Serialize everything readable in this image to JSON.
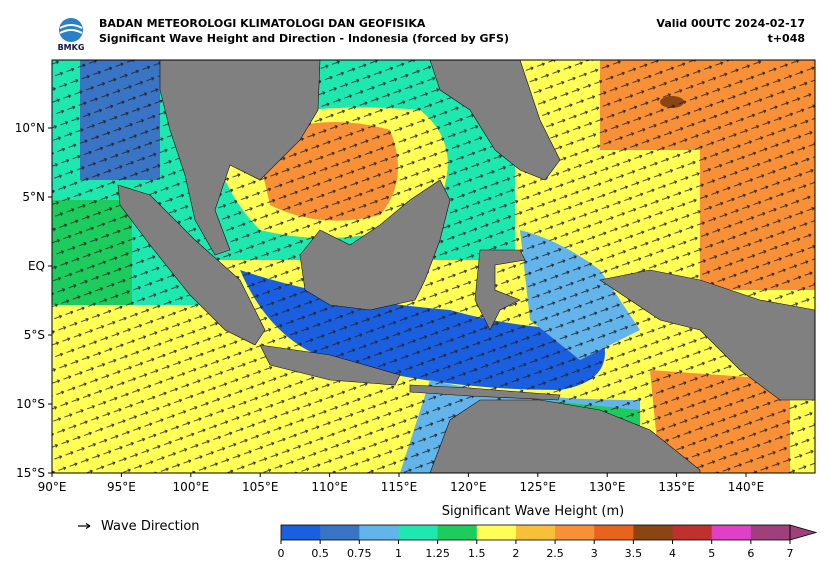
{
  "header": {
    "logo_text": "BMKG",
    "agency": "BADAN METEOROLOGI KLIMATOLOGI DAN GEOFISIKA",
    "product": "Significant Wave Height and Direction - Indonesia (forced by GFS)",
    "valid": "Valid 00UTC 2024-02-17",
    "lead_time": "t+048"
  },
  "map": {
    "lat_labels": [
      "10°N",
      "5°N",
      "EQ",
      "5°S",
      "10°S",
      "15°S"
    ],
    "lon_labels": [
      "90°E",
      "95°E",
      "100°E",
      "105°E",
      "110°E",
      "115°E",
      "120°E",
      "125°E",
      "130°E",
      "135°E",
      "140°E"
    ]
  },
  "legend": {
    "direction_label": "Wave Direction",
    "colorbar_title": "Significant Wave Height (m)",
    "ticks": [
      0,
      0.5,
      0.75,
      1,
      1.25,
      1.5,
      2,
      2.5,
      3,
      3.5,
      4,
      5,
      6,
      7
    ],
    "colors": [
      "#1a5fe0",
      "#3a74c4",
      "#62b4ea",
      "#1ee8b0",
      "#1ccc5c",
      "#ffff55",
      "#f8c038",
      "#f89038",
      "#e8641e",
      "#8b4513",
      "#c0302e",
      "#e040c8",
      "#a0407a"
    ],
    "extend_color": "#a0407a"
  }
}
